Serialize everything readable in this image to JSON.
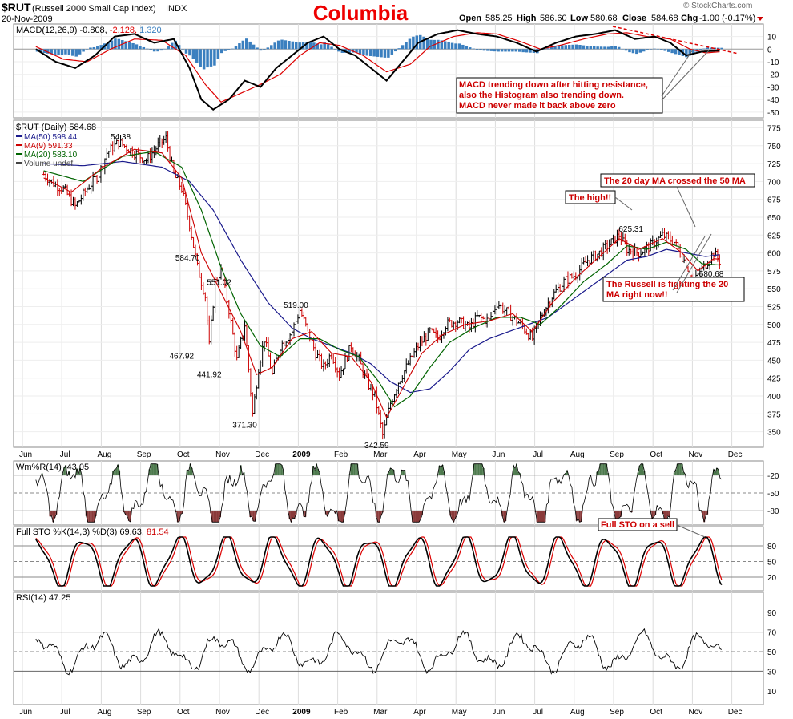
{
  "header": {
    "symbol": "$RUT",
    "name": "(Russell 2000 Small Cap Index)",
    "exchange": "INDX",
    "date": "20-Nov-2009",
    "title": "Columbia",
    "open_label": "Open",
    "open": "585.25",
    "high_label": "High",
    "high": "586.60",
    "low_label": "Low",
    "low": "580.68",
    "close_label": "Close",
    "close": "584.68",
    "chg_label": "Chg",
    "chg": "-1.00 (-0.17%)",
    "watermark": "© StockCharts.com",
    "colors": {
      "title": "#ee0000",
      "chg_arrow": "#cc0000"
    }
  },
  "macd": {
    "label": "MACD(12,26,9)",
    "v1": "-0.808,",
    "v2": "-2.128,",
    "v3": "1.320",
    "ticks": [
      "10",
      "0",
      "-10",
      "-20",
      "-30",
      "-40",
      "-50"
    ],
    "colors": {
      "macd": "#000000",
      "signal": "#dd0000",
      "hist": "#3a7fbf"
    }
  },
  "price": {
    "legend_main": "$RUT (Daily) 584.68",
    "legend": [
      {
        "text": "MA(50) 598.44",
        "color": "#1a1a8c"
      },
      {
        "text": "MA(9) 591.33",
        "color": "#cc0000"
      },
      {
        "text": "MA(20) 583.10",
        "color": "#006400"
      },
      {
        "text": "Volume undef",
        "color": "#444444"
      }
    ],
    "ticks": [
      "775",
      "750",
      "725",
      "700",
      "675",
      "650",
      "625",
      "600",
      "575",
      "550",
      "525",
      "500",
      "475",
      "450",
      "425",
      "400",
      "375",
      "350"
    ],
    "point_labels": [
      "584.70",
      "551.02",
      "467.92",
      "441.92",
      "371.30",
      "519.00",
      "342.59",
      "625.31",
      "580.68",
      "54.38"
    ]
  },
  "annotations": {
    "macd_note": [
      "MACD trending down after hitting resistance,",
      "also the Histogram also trending down.",
      "MACD never made it back above zero"
    ],
    "ma_cross": "The 20 day MA crossed the 50 MA",
    "high_note": "The high!!",
    "russell_note": [
      "The Russell is fighting the 20",
      "MA right now!!"
    ],
    "sto_note": "Full STO on a sell",
    "color": "#cc0000"
  },
  "willr": {
    "label": "Wm%R(14) -43.05",
    "ticks": [
      "-20",
      "-50",
      "-80"
    ],
    "colors": {
      "upper": "#4e7a4e",
      "lower": "#8a3a3a"
    }
  },
  "sto": {
    "label": "Full STO %K(14,3) %D(3) 69.63,",
    "d_value": "81.54",
    "ticks": [
      "80",
      "50",
      "20"
    ]
  },
  "rsi": {
    "label": "RSI(14) 47.25",
    "ticks": [
      "90",
      "70",
      "50",
      "30",
      "10"
    ]
  },
  "xaxis": {
    "labels": [
      "Jun",
      "Jul",
      "Aug",
      "Sep",
      "Oct",
      "Nov",
      "Dec",
      "2009",
      "Feb",
      "Mar",
      "Apr",
      "May",
      "Jun",
      "Jul",
      "Aug",
      "Sep",
      "Oct",
      "Nov",
      "Dec"
    ]
  },
  "chart_data": {
    "type": "line",
    "title": "Columbia",
    "x_unit": "month",
    "xlabels": [
      "Jun",
      "Jul",
      "Aug",
      "Sep",
      "Oct",
      "Nov",
      "Dec",
      "2009",
      "Feb",
      "Mar",
      "Apr",
      "May",
      "Jun",
      "Jul",
      "Aug",
      "Sep",
      "Oct",
      "Nov",
      "Dec"
    ],
    "price": {
      "ylim": [
        335,
        780
      ],
      "close_path": [
        [
          0.5,
          710
        ],
        [
          0.8,
          695
        ],
        [
          1.0,
          690
        ],
        [
          1.3,
          665
        ],
        [
          1.6,
          690
        ],
        [
          1.9,
          710
        ],
        [
          2.1,
          740
        ],
        [
          2.4,
          755
        ],
        [
          2.8,
          740
        ],
        [
          3.1,
          730
        ],
        [
          3.4,
          750
        ],
        [
          3.6,
          760
        ],
        [
          3.8,
          710
        ],
        [
          4.0,
          690
        ],
        [
          4.2,
          640
        ],
        [
          4.4,
          580
        ],
        [
          4.6,
          540
        ],
        [
          4.7,
          470
        ],
        [
          4.85,
          560
        ],
        [
          5.0,
          575
        ],
        [
          5.2,
          520
        ],
        [
          5.4,
          450
        ],
        [
          5.6,
          500
        ],
        [
          5.8,
          375
        ],
        [
          5.95,
          440
        ],
        [
          6.1,
          480
        ],
        [
          6.3,
          430
        ],
        [
          6.5,
          470
        ],
        [
          6.8,
          490
        ],
        [
          7.0,
          520
        ],
        [
          7.2,
          490
        ],
        [
          7.4,
          460
        ],
        [
          7.6,
          440
        ],
        [
          7.8,
          460
        ],
        [
          8.0,
          430
        ],
        [
          8.3,
          470
        ],
        [
          8.5,
          450
        ],
        [
          8.7,
          420
        ],
        [
          8.9,
          400
        ],
        [
          9.1,
          345
        ],
        [
          9.3,
          390
        ],
        [
          9.5,
          420
        ],
        [
          9.7,
          440
        ],
        [
          10.0,
          470
        ],
        [
          10.3,
          490
        ],
        [
          10.5,
          480
        ],
        [
          10.7,
          500
        ],
        [
          11.0,
          505
        ],
        [
          11.3,
          495
        ],
        [
          11.5,
          510
        ],
        [
          11.8,
          505
        ],
        [
          12.0,
          530
        ],
        [
          12.3,
          515
        ],
        [
          12.6,
          500
        ],
        [
          12.9,
          480
        ],
        [
          13.1,
          510
        ],
        [
          13.4,
          540
        ],
        [
          13.7,
          560
        ],
        [
          14.0,
          570
        ],
        [
          14.3,
          590
        ],
        [
          14.6,
          600
        ],
        [
          14.9,
          615
        ],
        [
          15.1,
          625
        ],
        [
          15.3,
          605
        ],
        [
          15.6,
          600
        ],
        [
          15.9,
          610
        ],
        [
          16.2,
          625
        ],
        [
          16.5,
          615
        ],
        [
          16.8,
          585
        ],
        [
          17.0,
          560
        ],
        [
          17.3,
          585
        ],
        [
          17.5,
          600
        ],
        [
          17.7,
          585
        ]
      ],
      "ma50_path": [
        [
          0.5,
          725
        ],
        [
          1.5,
          722
        ],
        [
          2.5,
          728
        ],
        [
          3.5,
          720
        ],
        [
          4.2,
          700
        ],
        [
          4.8,
          660
        ],
        [
          5.5,
          590
        ],
        [
          6.2,
          530
        ],
        [
          6.8,
          495
        ],
        [
          7.3,
          480
        ],
        [
          7.8,
          470
        ],
        [
          8.3,
          460
        ],
        [
          8.8,
          445
        ],
        [
          9.3,
          420
        ],
        [
          9.8,
          405
        ],
        [
          10.3,
          410
        ],
        [
          10.8,
          435
        ],
        [
          11.3,
          465
        ],
        [
          11.8,
          480
        ],
        [
          12.3,
          490
        ],
        [
          12.8,
          500
        ],
        [
          13.3,
          510
        ],
        [
          13.8,
          530
        ],
        [
          14.3,
          550
        ],
        [
          14.8,
          570
        ],
        [
          15.3,
          590
        ],
        [
          15.8,
          595
        ],
        [
          16.3,
          605
        ],
        [
          16.8,
          600
        ],
        [
          17.3,
          595
        ],
        [
          17.7,
          598
        ]
      ],
      "ma9_path": [
        [
          0.5,
          705
        ],
        [
          1.2,
          685
        ],
        [
          2.0,
          720
        ],
        [
          2.8,
          745
        ],
        [
          3.5,
          740
        ],
        [
          4.0,
          705
        ],
        [
          4.5,
          600
        ],
        [
          5.0,
          545
        ],
        [
          5.5,
          490
        ],
        [
          5.9,
          430
        ],
        [
          6.3,
          440
        ],
        [
          6.8,
          480
        ],
        [
          7.3,
          490
        ],
        [
          7.8,
          460
        ],
        [
          8.3,
          455
        ],
        [
          8.8,
          420
        ],
        [
          9.2,
          370
        ],
        [
          9.6,
          410
        ],
        [
          10.1,
          460
        ],
        [
          10.6,
          485
        ],
        [
          11.2,
          500
        ],
        [
          11.8,
          505
        ],
        [
          12.4,
          515
        ],
        [
          12.9,
          490
        ],
        [
          13.4,
          530
        ],
        [
          14.0,
          565
        ],
        [
          14.6,
          595
        ],
        [
          15.1,
          620
        ],
        [
          15.6,
          605
        ],
        [
          16.2,
          620
        ],
        [
          16.7,
          600
        ],
        [
          17.1,
          575
        ],
        [
          17.5,
          592
        ],
        [
          17.7,
          591
        ]
      ],
      "ma20_path": [
        [
          0.5,
          715
        ],
        [
          1.5,
          700
        ],
        [
          2.5,
          735
        ],
        [
          3.3,
          742
        ],
        [
          4.0,
          720
        ],
        [
          4.5,
          660
        ],
        [
          5.0,
          580
        ],
        [
          5.5,
          515
        ],
        [
          6.0,
          470
        ],
        [
          6.5,
          455
        ],
        [
          7.0,
          480
        ],
        [
          7.5,
          480
        ],
        [
          8.0,
          465
        ],
        [
          8.5,
          455
        ],
        [
          9.0,
          420
        ],
        [
          9.4,
          385
        ],
        [
          9.8,
          400
        ],
        [
          10.3,
          440
        ],
        [
          10.8,
          475
        ],
        [
          11.4,
          495
        ],
        [
          12.0,
          510
        ],
        [
          12.6,
          510
        ],
        [
          13.1,
          500
        ],
        [
          13.6,
          525
        ],
        [
          14.2,
          560
        ],
        [
          14.8,
          585
        ],
        [
          15.3,
          610
        ],
        [
          15.8,
          605
        ],
        [
          16.3,
          615
        ],
        [
          16.8,
          605
        ],
        [
          17.2,
          585
        ],
        [
          17.7,
          583
        ]
      ]
    },
    "macd": {
      "ylim": [
        -52,
        18
      ],
      "macd_path": [
        [
          0.3,
          0
        ],
        [
          0.8,
          -10
        ],
        [
          1.3,
          -15
        ],
        [
          1.8,
          -5
        ],
        [
          2.3,
          10
        ],
        [
          2.8,
          12
        ],
        [
          3.3,
          5
        ],
        [
          3.8,
          8
        ],
        [
          4.2,
          -15
        ],
        [
          4.5,
          -40
        ],
        [
          4.8,
          -48
        ],
        [
          5.2,
          -40
        ],
        [
          5.6,
          -25
        ],
        [
          6.0,
          -30
        ],
        [
          6.4,
          -15
        ],
        [
          6.8,
          -5
        ],
        [
          7.2,
          5
        ],
        [
          7.6,
          10
        ],
        [
          8.0,
          0
        ],
        [
          8.4,
          -5
        ],
        [
          8.8,
          -15
        ],
        [
          9.2,
          -25
        ],
        [
          9.6,
          -10
        ],
        [
          10.0,
          5
        ],
        [
          10.5,
          12
        ],
        [
          11.0,
          15
        ],
        [
          11.5,
          12
        ],
        [
          12.0,
          10
        ],
        [
          12.5,
          5
        ],
        [
          13.0,
          -2
        ],
        [
          13.5,
          5
        ],
        [
          14.0,
          10
        ],
        [
          14.5,
          12
        ],
        [
          15.0,
          15
        ],
        [
          15.5,
          8
        ],
        [
          16.0,
          10
        ],
        [
          16.4,
          5
        ],
        [
          16.8,
          -5
        ],
        [
          17.2,
          -2
        ],
        [
          17.7,
          -1
        ]
      ],
      "signal_path": [
        [
          0.3,
          2
        ],
        [
          1.0,
          -8
        ],
        [
          1.6,
          -10
        ],
        [
          2.2,
          0
        ],
        [
          2.8,
          8
        ],
        [
          3.5,
          7
        ],
        [
          4.1,
          -5
        ],
        [
          4.6,
          -28
        ],
        [
          5.0,
          -42
        ],
        [
          5.5,
          -35
        ],
        [
          6.0,
          -28
        ],
        [
          6.5,
          -20
        ],
        [
          7.0,
          -5
        ],
        [
          7.5,
          5
        ],
        [
          8.0,
          3
        ],
        [
          8.6,
          -5
        ],
        [
          9.2,
          -18
        ],
        [
          9.8,
          -12
        ],
        [
          10.3,
          2
        ],
        [
          10.9,
          10
        ],
        [
          11.5,
          13
        ],
        [
          12.0,
          12
        ],
        [
          12.6,
          6
        ],
        [
          13.1,
          0
        ],
        [
          13.6,
          3
        ],
        [
          14.2,
          8
        ],
        [
          14.8,
          12
        ],
        [
          15.3,
          13
        ],
        [
          15.8,
          10
        ],
        [
          16.4,
          8
        ],
        [
          16.9,
          0
        ],
        [
          17.3,
          -3
        ],
        [
          17.7,
          -2
        ]
      ]
    },
    "indicators": {
      "willr_ylim": [
        -100,
        0
      ],
      "sto_ylim": [
        0,
        100
      ],
      "rsi_ylim": [
        0,
        100
      ],
      "willr_levels": [
        -20,
        -50,
        -80
      ],
      "sto_levels": [
        80,
        50,
        20
      ],
      "rsi_levels": [
        70,
        50,
        30
      ]
    }
  }
}
